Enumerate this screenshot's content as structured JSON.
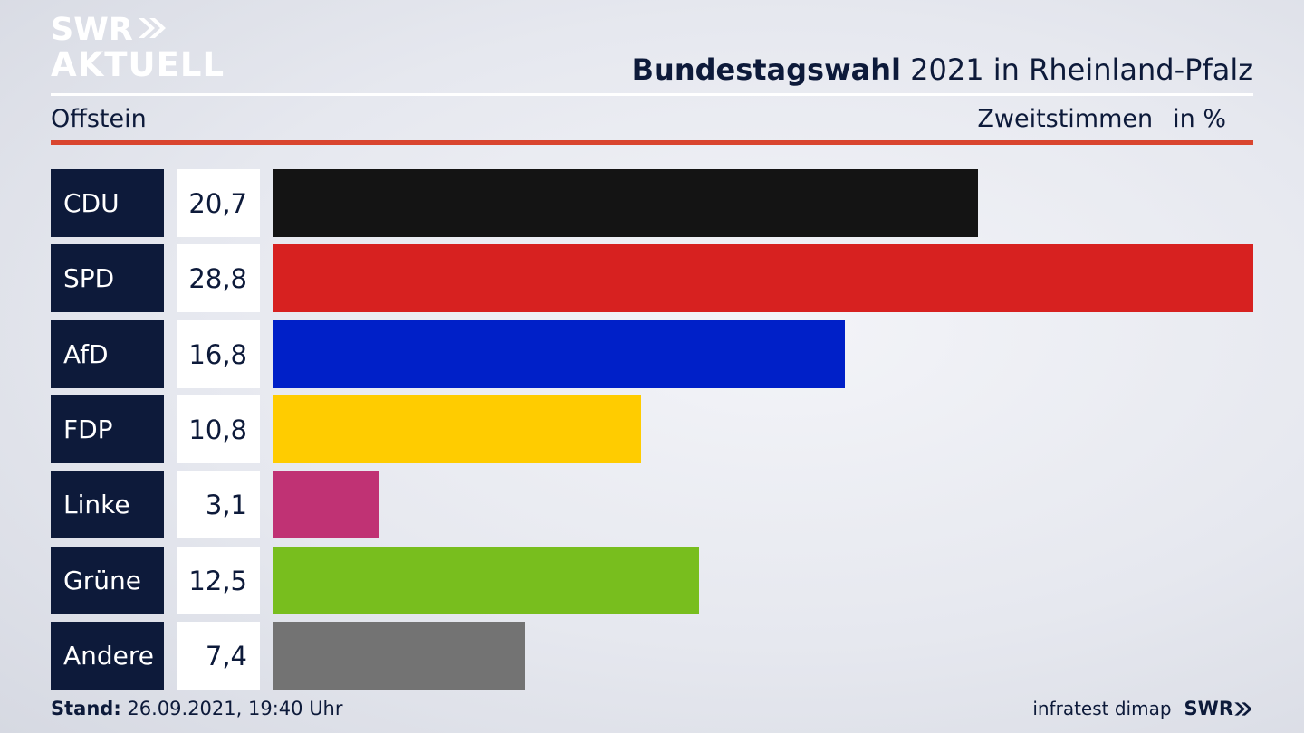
{
  "brand": {
    "line1": "SWR",
    "line2": "AKTUELL",
    "footer_logo": "SWR"
  },
  "header": {
    "title_bold": "Bundestagswahl",
    "title_rest": "2021 in Rheinland-Pfalz"
  },
  "subheader": {
    "location": "Offstein",
    "measure": "Zweitstimmen",
    "unit": "in %"
  },
  "footer": {
    "stand_label": "Stand:",
    "stand_value": "26.09.2021, 19:40 Uhr",
    "source": "infratest dimap"
  },
  "colors": {
    "label_bg": "#0d1a3a",
    "accent_rule": "#d9452f"
  },
  "chart_data": {
    "type": "bar",
    "orientation": "horizontal",
    "categories": [
      "CDU",
      "SPD",
      "AfD",
      "FDP",
      "Linke",
      "Grüne",
      "Andere"
    ],
    "values": [
      20.7,
      28.8,
      16.8,
      10.8,
      3.1,
      12.5,
      7.4
    ],
    "value_labels": [
      "20,7",
      "28,8",
      "16,8",
      "10,8",
      "3,1",
      "12,5",
      "7,4"
    ],
    "colors": [
      "#141414",
      "#d72120",
      "#0020c8",
      "#ffcc00",
      "#c03274",
      "#78be1e",
      "#737373"
    ],
    "xlim": [
      0,
      28.8
    ],
    "grid": false,
    "legend": "none"
  }
}
